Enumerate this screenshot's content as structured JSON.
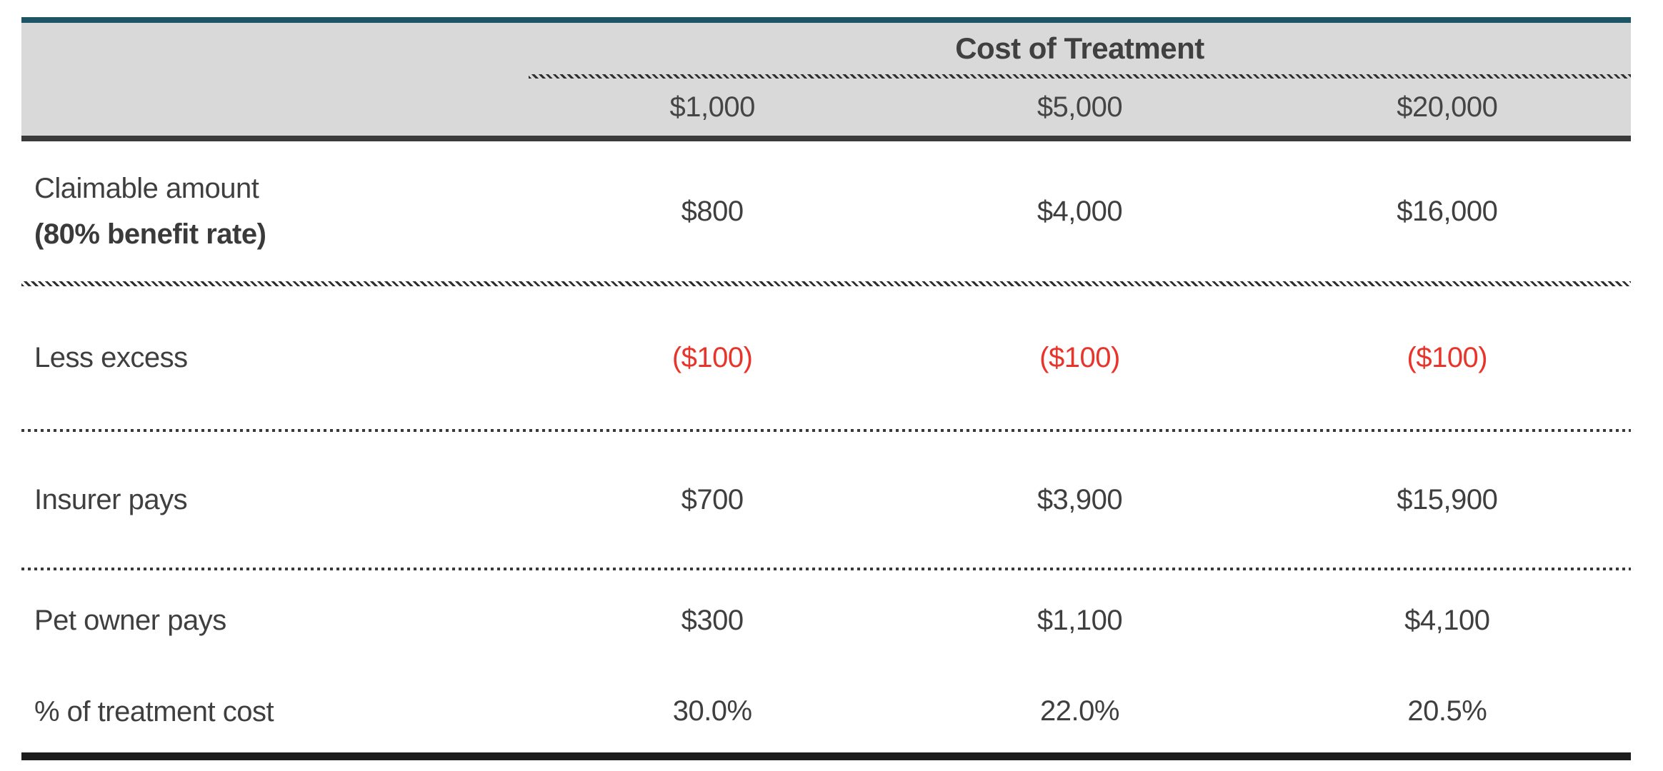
{
  "table": {
    "title": "Cost of Treatment",
    "columns": [
      "$1,000",
      "$5,000",
      "$20,000"
    ],
    "rows": [
      {
        "label": "Claimable amount",
        "label_line2": "(80% benefit rate)",
        "values": [
          "$800",
          "$4,000",
          "$16,000"
        ]
      },
      {
        "label": "Less excess",
        "values": [
          "($100)",
          "($100)",
          "($100)"
        ]
      },
      {
        "label": "Insurer pays",
        "values": [
          "$700",
          "$3,900",
          "$15,900"
        ]
      },
      {
        "label": "Pet owner pays",
        "values": [
          "$300",
          "$1,100",
          "$4,100"
        ]
      },
      {
        "label": "% of treatment cost",
        "values": [
          "30.0%",
          "22.0%",
          "20.5%"
        ]
      }
    ],
    "colors": {
      "accent_teal": "#1b5566",
      "header_background": "#d9d9d9",
      "body_text": "#3f3f3f",
      "negative_red": "#e8342a",
      "divider_dark": "#3a3a3a",
      "bottom_rule_black": "#1d1d1d"
    }
  },
  "chart_data": {
    "type": "table",
    "title": "Cost of Treatment",
    "categories": [
      "$1,000",
      "$5,000",
      "$20,000"
    ],
    "series": [
      {
        "name": "Claimable amount (80% benefit rate)",
        "values": [
          800,
          4000,
          16000
        ]
      },
      {
        "name": "Less excess",
        "values": [
          -100,
          -100,
          -100
        ]
      },
      {
        "name": "Insurer pays",
        "values": [
          700,
          3900,
          15900
        ]
      },
      {
        "name": "Pet owner pays",
        "values": [
          300,
          1100,
          4100
        ]
      },
      {
        "name": "% of treatment cost",
        "values": [
          30.0,
          22.0,
          20.5
        ]
      }
    ]
  }
}
